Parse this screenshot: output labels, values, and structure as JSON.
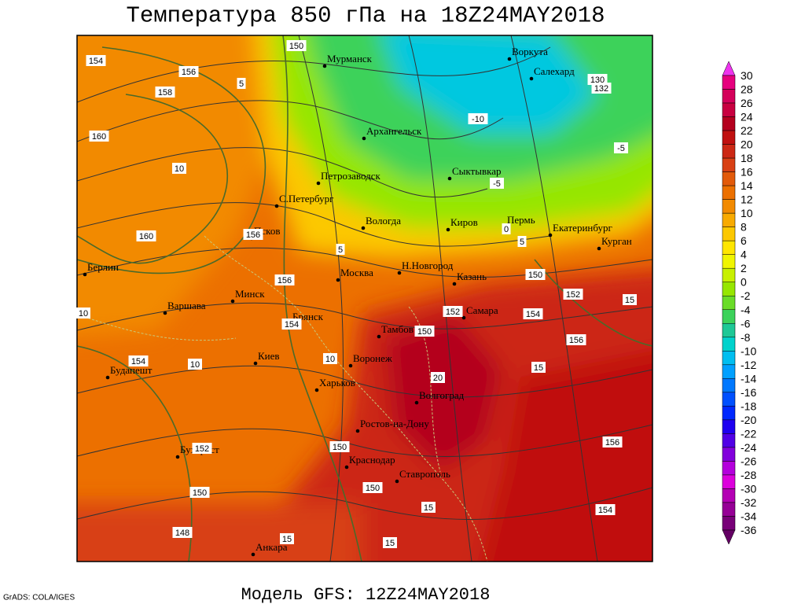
{
  "header": {
    "title": "Температура 850 гПа на 18Z24MAY2018"
  },
  "footer": {
    "model": "Модель GFS: 12Z24MAY2018",
    "credit": "GrADS: COLA/IGES"
  },
  "map": {
    "cities": [
      "Мурманск",
      "Воркута",
      "Салехард",
      "Архангельск",
      "Петрозаводск",
      "Сыктывкар",
      "С.Петербург",
      "Вологда",
      "Киров",
      "Пермь",
      "Екатеринбург",
      "Курган",
      "Псков",
      "Берлин",
      "Москва",
      "Н.Новгород",
      "Казань",
      "Варшава",
      "Минск",
      "Брянск",
      "Самара",
      "Тамбов",
      "Киев",
      "Воронеж",
      "Будапешт",
      "Харьков",
      "Волгоград",
      "Ростов-на-Дону",
      "Бухарест",
      "Краснодар",
      "Ставрополь",
      "Анкара"
    ],
    "isoline_labels": [
      150,
      154,
      156,
      158,
      5,
      160,
      10,
      130,
      132,
      -10,
      -5,
      -5,
      0,
      5,
      5,
      160,
      156,
      156,
      150,
      152,
      15,
      152,
      154,
      10,
      154,
      150,
      156,
      10,
      10,
      154,
      15,
      20,
      156,
      152,
      150,
      150,
      150,
      15,
      154,
      148,
      15,
      15
    ]
  },
  "colorbar": {
    "labels": [
      30,
      28,
      26,
      24,
      22,
      20,
      18,
      16,
      14,
      12,
      10,
      8,
      6,
      4,
      2,
      0,
      -2,
      -4,
      -6,
      -8,
      -10,
      -12,
      -14,
      -16,
      -18,
      -20,
      -22,
      -24,
      -26,
      -28,
      -30,
      -32,
      -34,
      -36
    ],
    "colors": [
      "#ee33ee",
      "#e6007e",
      "#d4005a",
      "#c80040",
      "#b4001e",
      "#c01010",
      "#cc2814",
      "#d84014",
      "#e25a0a",
      "#ec7000",
      "#f28a00",
      "#f8aa00",
      "#fcc800",
      "#ffe600",
      "#f0f500",
      "#c8f000",
      "#96e600",
      "#6adc28",
      "#3cd25a",
      "#1ec896",
      "#00d2cc",
      "#00bef0",
      "#00a0ff",
      "#0078ff",
      "#0050ff",
      "#0028ff",
      "#1e00f0",
      "#5000e6",
      "#8200dc",
      "#b400dc",
      "#dc00dc",
      "#b400b4",
      "#960096",
      "#780078",
      "#640064"
    ]
  }
}
